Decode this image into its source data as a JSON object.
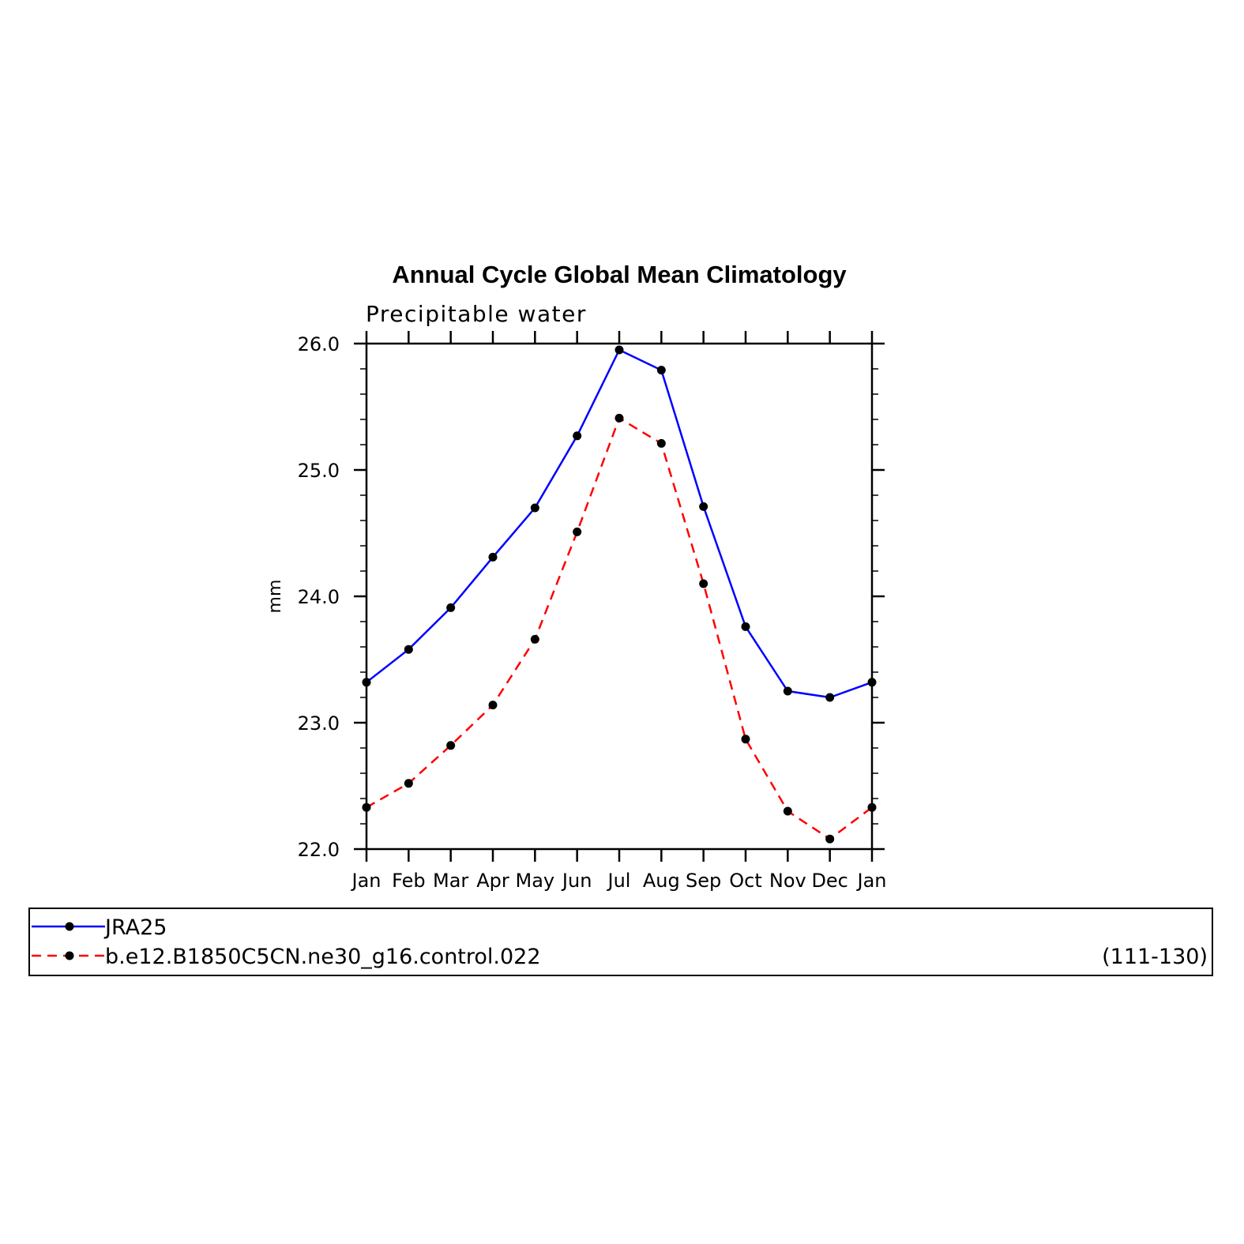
{
  "chart_data": {
    "type": "line",
    "title": "Annual Cycle Global Mean Climatology",
    "subtitle": "Precipitable water",
    "xlabel": "",
    "ylabel": "mm",
    "ylim": [
      22.0,
      26.0
    ],
    "yticks": [
      "22.0",
      "23.0",
      "24.0",
      "25.0",
      "26.0"
    ],
    "categories": [
      "Jan",
      "Feb",
      "Mar",
      "Apr",
      "May",
      "Jun",
      "Jul",
      "Aug",
      "Sep",
      "Oct",
      "Nov",
      "Dec",
      "Jan"
    ],
    "grid": false,
    "legend_position": "bottom",
    "series": [
      {
        "name": "JRA25",
        "color": "#0000ff",
        "dash": "solid",
        "values": [
          23.32,
          23.58,
          23.91,
          24.31,
          24.7,
          25.27,
          25.95,
          25.79,
          24.71,
          23.76,
          23.25,
          23.2,
          23.32
        ]
      },
      {
        "name": "b.e12.B1850C5CN.ne30_g16.control.022",
        "color": "#ff0000",
        "dash": "dashed",
        "values": [
          22.33,
          22.52,
          22.82,
          23.14,
          23.66,
          24.51,
          25.41,
          25.21,
          24.1,
          22.87,
          22.3,
          22.08,
          22.33
        ]
      }
    ],
    "legend_note": "(111-130)"
  }
}
